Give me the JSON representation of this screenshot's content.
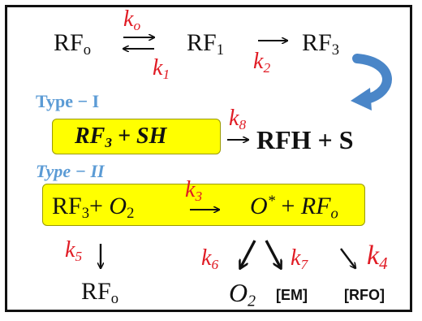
{
  "reaction1": {
    "rf0_base": "RF",
    "rf0_sub": "o",
    "k0_base": "k",
    "k0_sub": "o",
    "k1_base": "k",
    "k1_sub": "1",
    "rf1_base": "RF",
    "rf1_sub": "1",
    "k2_base": "k",
    "k2_sub": "2",
    "rf3_base": "RF",
    "rf3_sub": "3"
  },
  "type1": {
    "label": "Type − I",
    "reactant_base": "RF",
    "reactant_sub": "3",
    "reactant_rest": " + SH",
    "k8_base": "k",
    "k8_sub": "8",
    "product": "RFH + S"
  },
  "type2": {
    "label": "Type − II",
    "rf3_base": "RF",
    "rf3_sub": "3",
    "plus": "+ ",
    "o2_base": "O",
    "o2_sub": "2",
    "k3_base": "k",
    "k3_sub": "3",
    "o_star": "O",
    "star": "*",
    "plus2": " +  ",
    "rfo_base": "RF",
    "rfo_sub": "o"
  },
  "products": {
    "k5_base": "k",
    "k5_sub": "5",
    "k6_base": "k",
    "k6_sub": "6",
    "k7_base": "k",
    "k7_sub": "7",
    "k4_base": "k",
    "k4_sub": "4",
    "rf0_base": "RF",
    "rf0_sub": "o",
    "o2_base": "O",
    "o2_sub": "2",
    "em": "[EM]",
    "rfo": "[RFO]"
  },
  "colors": {
    "rate_constant": "#e01b24",
    "type_label": "#5b9bd5",
    "highlight": "#ffff00",
    "curved_arrow": "#4a86c8"
  }
}
